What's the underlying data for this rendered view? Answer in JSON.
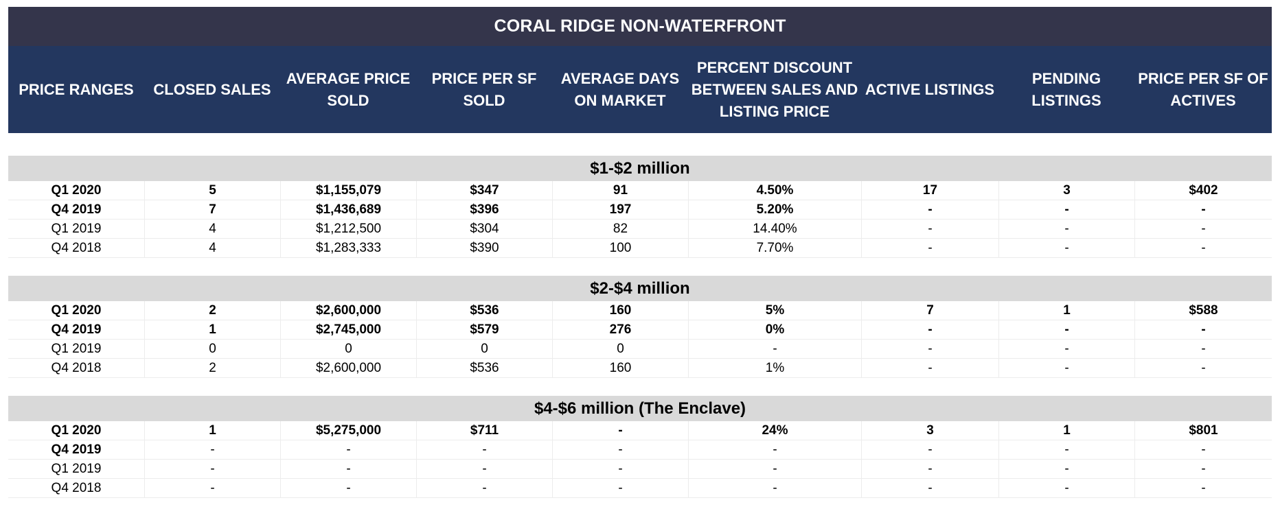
{
  "title": "CORAL RIDGE NON-WATERFRONT",
  "columns": [
    "PRICE RANGES",
    "CLOSED SALES",
    "AVERAGE PRICE\nSOLD",
    "PRICE PER SF\nSOLD",
    "AVERAGE DAYS\nON MARKET",
    "PERCENT DISCOUNT\nBETWEEN SALES AND\nLISTING PRICE",
    "ACTIVE LISTINGS",
    "PENDING\nLISTINGS",
    "PRICE PER SF OF\nACTIVES"
  ],
  "sections": [
    {
      "label": "$1-$2 million",
      "rows": [
        {
          "bold": true,
          "cells": [
            "Q1 2020",
            "5",
            "$1,155,079",
            "$347",
            "91",
            "4.50%",
            "17",
            "3",
            "$402"
          ]
        },
        {
          "bold": true,
          "cells": [
            "Q4 2019",
            "7",
            "$1,436,689",
            "$396",
            "197",
            "5.20%",
            "-",
            "-",
            "-"
          ]
        },
        {
          "bold": false,
          "cells": [
            "Q1 2019",
            "4",
            "$1,212,500",
            "$304",
            "82",
            "14.40%",
            "-",
            "-",
            "-"
          ]
        },
        {
          "bold": false,
          "cells": [
            "Q4 2018",
            "4",
            "$1,283,333",
            "$390",
            "100",
            "7.70%",
            "-",
            "-",
            "-"
          ]
        }
      ]
    },
    {
      "label": "$2-$4 million",
      "rows": [
        {
          "bold": true,
          "cells": [
            "Q1 2020",
            "2",
            "$2,600,000",
            "$536",
            "160",
            "5%",
            "7",
            "1",
            "$588"
          ]
        },
        {
          "bold": true,
          "cells": [
            "Q4 2019",
            "1",
            "$2,745,000",
            "$579",
            "276",
            "0%",
            "-",
            "-",
            "-"
          ]
        },
        {
          "bold": false,
          "cells": [
            "Q1 2019",
            "0",
            "0",
            "0",
            "0",
            "-",
            "-",
            "-",
            "-"
          ]
        },
        {
          "bold": false,
          "cells": [
            "Q4 2018",
            "2",
            "$2,600,000",
            "$536",
            "160",
            "1%",
            "-",
            "-",
            "-"
          ]
        }
      ]
    },
    {
      "label": "$4-$6 million (The Enclave)",
      "rows": [
        {
          "bold": true,
          "cells": [
            "Q1 2020",
            "1",
            "$5,275,000",
            "$711",
            "-",
            "24%",
            "3",
            "1",
            "$801"
          ]
        },
        {
          "bold": false,
          "firstBold": true,
          "cells": [
            "Q4 2019",
            "-",
            "-",
            "-",
            "-",
            "-",
            "-",
            "-",
            "-"
          ]
        },
        {
          "bold": false,
          "cells": [
            "Q1 2019",
            "-",
            "-",
            "-",
            "-",
            "-",
            "-",
            "-",
            "-"
          ]
        },
        {
          "bold": false,
          "cells": [
            "Q4 2018",
            "-",
            "-",
            "-",
            "-",
            "-",
            "-",
            "-",
            "-"
          ]
        }
      ]
    }
  ]
}
